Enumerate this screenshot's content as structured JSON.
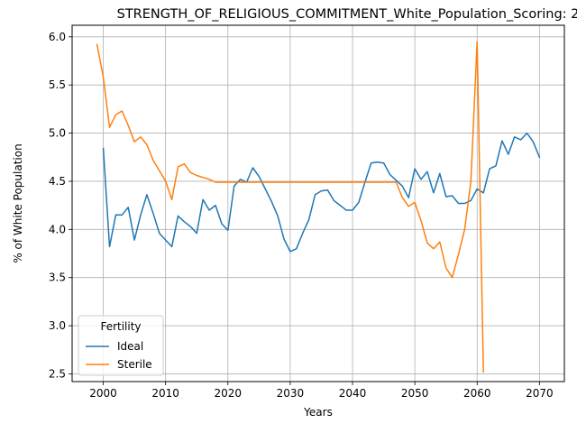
{
  "chart_data": {
    "type": "line",
    "title": "STRENGTH_OF_RELIGIOUS_COMMITMENT_White_Population_Scoring: 2",
    "xlabel": "Years",
    "ylabel": "% of White Population",
    "xlim": [
      1995,
      2074
    ],
    "ylim": [
      2.42,
      6.12
    ],
    "xticks": [
      2000,
      2010,
      2020,
      2030,
      2040,
      2050,
      2060,
      2070
    ],
    "yticks": [
      2.5,
      3.0,
      3.5,
      4.0,
      4.5,
      5.0,
      5.5,
      6.0
    ],
    "xtick_labels": [
      "2000",
      "2010",
      "2020",
      "2030",
      "2040",
      "2050",
      "2060",
      "2070"
    ],
    "ytick_labels": [
      "2.5",
      "3.0",
      "3.5",
      "4.0",
      "4.5",
      "5.0",
      "5.5",
      "6.0"
    ],
    "grid": true,
    "legend": {
      "title": "Fertility",
      "placement": "lower-left"
    },
    "series": [
      {
        "name": "Ideal",
        "color": "#1f77b4",
        "x": [
          2000,
          2001,
          2002,
          2003,
          2004,
          2005,
          2006,
          2007,
          2008,
          2009,
          2010,
          2011,
          2012,
          2013,
          2014,
          2015,
          2016,
          2017,
          2018,
          2019,
          2020,
          2021,
          2022,
          2023,
          2024,
          2025,
          2026,
          2027,
          2028,
          2029,
          2030,
          2031,
          2032,
          2033,
          2034,
          2035,
          2036,
          2037,
          2038,
          2039,
          2040,
          2041,
          2042,
          2043,
          2044,
          2045,
          2046,
          2047,
          2048,
          2049,
          2050,
          2051,
          2052,
          2053,
          2054,
          2055,
          2056,
          2057,
          2058,
          2059,
          2060,
          2061,
          2062,
          2063,
          2064,
          2065,
          2066,
          2067,
          2068,
          2069,
          2070
        ],
        "y": [
          4.84,
          3.82,
          4.15,
          4.15,
          4.23,
          3.89,
          4.15,
          4.36,
          4.17,
          3.96,
          3.89,
          3.82,
          4.14,
          4.08,
          4.03,
          3.96,
          4.31,
          4.2,
          4.25,
          4.06,
          3.99,
          4.45,
          4.52,
          4.49,
          4.64,
          4.55,
          4.42,
          4.29,
          4.14,
          3.9,
          3.77,
          3.8,
          3.96,
          4.1,
          4.36,
          4.4,
          4.41,
          4.3,
          4.25,
          4.2,
          4.2,
          4.28,
          4.49,
          4.69,
          4.7,
          4.69,
          4.57,
          4.51,
          4.45,
          4.33,
          4.63,
          4.52,
          4.6,
          4.38,
          4.58,
          4.34,
          4.35,
          4.27,
          4.27,
          4.3,
          4.42,
          4.38,
          4.63,
          4.66,
          4.92,
          4.78,
          4.96,
          4.93,
          5.0,
          4.91,
          4.75
        ]
      },
      {
        "name": "Sterile",
        "color": "#ff7f0e",
        "x": [
          1999,
          2000,
          2001,
          2002,
          2003,
          2004,
          2005,
          2006,
          2007,
          2008,
          2009,
          2010,
          2011,
          2012,
          2013,
          2014,
          2015,
          2016,
          2017,
          2018,
          2019,
          2020,
          2021,
          2022,
          2023,
          2024,
          2025,
          2026,
          2027,
          2028,
          2029,
          2030,
          2031,
          2032,
          2033,
          2034,
          2035,
          2036,
          2037,
          2038,
          2039,
          2040,
          2041,
          2042,
          2043,
          2044,
          2045,
          2046,
          2047,
          2048,
          2049,
          2050,
          2051,
          2052,
          2053,
          2054,
          2055,
          2056,
          2057,
          2058,
          2059,
          2060,
          2061
        ],
        "y": [
          5.92,
          5.58,
          5.06,
          5.19,
          5.23,
          5.08,
          4.91,
          4.96,
          4.88,
          4.72,
          4.61,
          4.5,
          4.31,
          4.65,
          4.68,
          4.59,
          4.56,
          4.54,
          4.52,
          4.49,
          4.49,
          4.49,
          4.49,
          4.49,
          4.49,
          4.49,
          4.49,
          4.49,
          4.49,
          4.49,
          4.49,
          4.49,
          4.49,
          4.49,
          4.49,
          4.49,
          4.49,
          4.49,
          4.49,
          4.49,
          4.49,
          4.49,
          4.49,
          4.49,
          4.49,
          4.49,
          4.49,
          4.49,
          4.49,
          4.33,
          4.24,
          4.28,
          4.09,
          3.86,
          3.8,
          3.87,
          3.6,
          3.5,
          3.74,
          4.0,
          4.5,
          5.95,
          2.52
        ]
      }
    ]
  }
}
